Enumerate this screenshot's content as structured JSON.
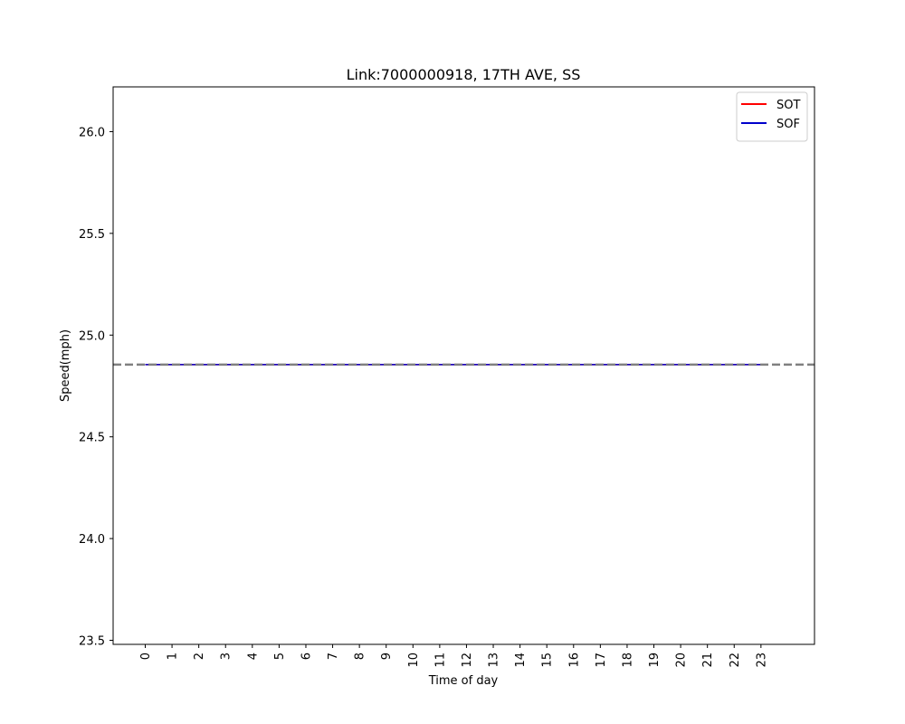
{
  "chart_data": {
    "type": "line",
    "title": "Link:7000000918, 17TH AVE, SS",
    "xlabel": "Time of day",
    "ylabel": "Speed(mph)",
    "x": [
      0,
      1,
      2,
      3,
      4,
      5,
      6,
      7,
      8,
      9,
      10,
      11,
      12,
      13,
      14,
      15,
      16,
      17,
      18,
      19,
      20,
      21,
      22,
      23
    ],
    "x_tick_labels": [
      "0",
      "1",
      "2",
      "3",
      "4",
      "5",
      "6",
      "7",
      "8",
      "9",
      "10",
      "11",
      "12",
      "13",
      "14",
      "15",
      "16",
      "17",
      "18",
      "19",
      "20",
      "21",
      "22",
      "23"
    ],
    "xlim": [
      -1.2,
      25.0
    ],
    "ylim": [
      23.48,
      26.22
    ],
    "y_ticks": [
      23.5,
      24.0,
      24.5,
      25.0,
      25.5,
      26.0
    ],
    "y_tick_labels": [
      "23.5",
      "24.0",
      "24.5",
      "25.0",
      "25.5",
      "26.0"
    ],
    "series": [
      {
        "name": "SOT",
        "color": "#ff0000",
        "values": [
          24.855,
          24.855,
          24.855,
          24.855,
          24.855,
          24.855,
          24.855,
          24.855,
          24.855,
          24.855,
          24.855,
          24.855,
          24.855,
          24.855,
          24.855,
          24.855,
          24.855,
          24.855,
          24.855,
          24.855,
          24.855,
          24.855,
          24.855,
          24.855
        ]
      },
      {
        "name": "SOF",
        "color": "#0000cc",
        "values": [
          24.855,
          24.855,
          24.855,
          24.855,
          24.855,
          24.855,
          24.855,
          24.855,
          24.855,
          24.855,
          24.855,
          24.855,
          24.855,
          24.855,
          24.855,
          24.855,
          24.855,
          24.855,
          24.855,
          24.855,
          24.855,
          24.855,
          24.855,
          24.855
        ]
      }
    ],
    "reference_line": {
      "y": 24.855,
      "style": "dashed",
      "color": "#808080"
    },
    "legend_position": "top-right",
    "grid": false
  }
}
